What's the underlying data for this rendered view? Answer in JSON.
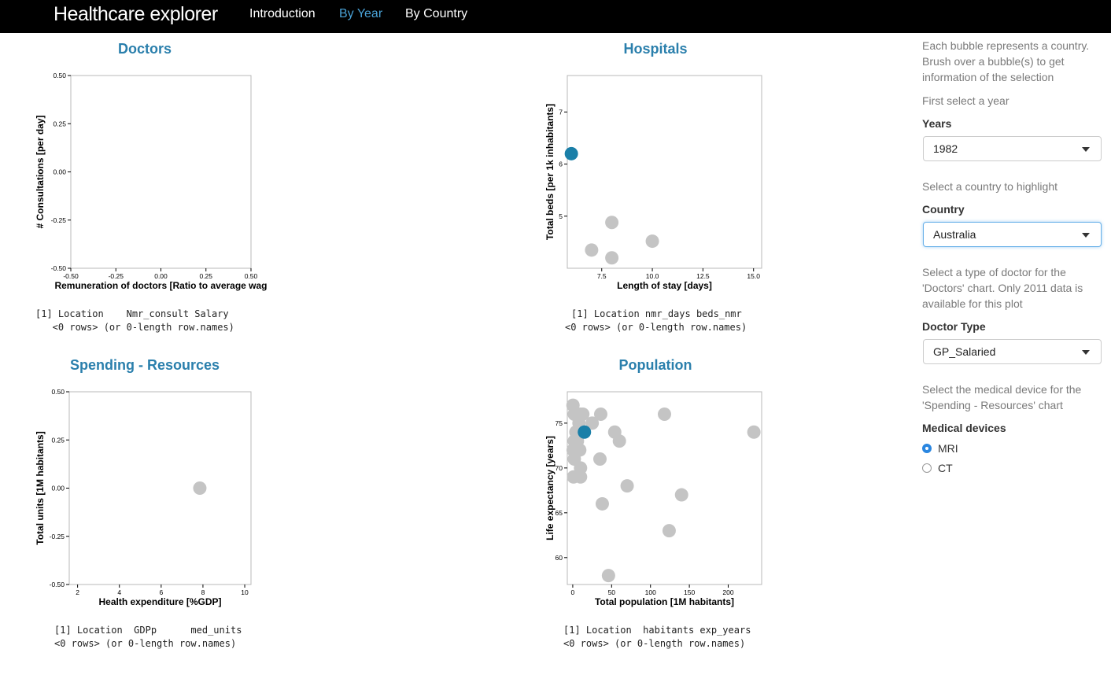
{
  "app": {
    "title": "Healthcare explorer",
    "nav": [
      {
        "label": "Introduction",
        "active": false
      },
      {
        "label": "By Year",
        "active": true
      },
      {
        "label": "By Country",
        "active": false
      }
    ]
  },
  "colors": {
    "highlight": "#1a7fa8",
    "bubble": "#c4c4c4",
    "title": "#2a7fac",
    "navbar": "#000000",
    "accent": "#4aa3d8"
  },
  "panels": {
    "doctors": {
      "title": "Doctors",
      "console": [
        "[1] Location    Nmr_consult Salary",
        "   <0 rows> (or 0-length row.names)"
      ]
    },
    "hospitals": {
      "title": "Hospitals",
      "console": [
        "[1] Location nmr_days beds_nmr",
        "<0 rows> (or 0-length row.names)"
      ]
    },
    "spending": {
      "title": "Spending - Resources",
      "console": [
        "[1] Location  GDPp      med_units",
        "<0 rows> (or 0-length row.names)"
      ]
    },
    "population": {
      "title": "Population",
      "console": [
        "[1] Location  habitants exp_years",
        "<0 rows> (or 0-length row.names)"
      ]
    }
  },
  "chart_data": [
    {
      "id": "doctors",
      "type": "scatter",
      "xlabel": "Remuneration of doctors [Ratio to average wag",
      "ylabel": "# Consultations [per day]",
      "xlim": [
        -0.5,
        0.5
      ],
      "ylim": [
        -0.5,
        0.5
      ],
      "xticks": [
        "-0.50",
        "-0.25",
        "0.00",
        "0.25",
        "0.50"
      ],
      "yticks": [
        "-0.50",
        "-0.25",
        "0.00",
        "0.25",
        "0.50"
      ],
      "points": []
    },
    {
      "id": "hospitals",
      "type": "scatter",
      "xlabel": "Length of stay [days]",
      "ylabel": "Total beds [per 1k inhabitants]",
      "xlim": [
        5.8,
        15.4
      ],
      "ylim": [
        4.0,
        7.7
      ],
      "xticks": [
        "7.5",
        "10.0",
        "12.5",
        "15.0"
      ],
      "yticks": [
        "5",
        "6",
        "7"
      ],
      "points": [
        {
          "x": 6.0,
          "y": 6.2,
          "highlight": true
        },
        {
          "x": 7.0,
          "y": 4.35,
          "highlight": false
        },
        {
          "x": 8.0,
          "y": 4.88,
          "highlight": false
        },
        {
          "x": 8.0,
          "y": 4.2,
          "highlight": false
        },
        {
          "x": 10.0,
          "y": 4.52,
          "highlight": false
        }
      ]
    },
    {
      "id": "spending",
      "type": "scatter",
      "xlabel": "Health expenditure [%GDP]",
      "ylabel": "Total units [1M habitants]",
      "xlim": [
        1.6,
        10.3
      ],
      "ylim": [
        -0.5,
        0.5
      ],
      "xticks": [
        "2",
        "4",
        "6",
        "8",
        "10"
      ],
      "yticks": [
        "-0.50",
        "-0.25",
        "0.00",
        "0.25",
        "0.50"
      ],
      "points": [
        {
          "x": 7.85,
          "y": 0.0,
          "highlight": false
        }
      ]
    },
    {
      "id": "population",
      "type": "scatter",
      "xlabel": "Total population [1M habitants]",
      "ylabel": "Life expectancy [years]",
      "xlim": [
        -7,
        243
      ],
      "ylim": [
        57,
        78.5
      ],
      "xticks": [
        "0",
        "50",
        "100",
        "150",
        "200"
      ],
      "yticks": [
        "60",
        "65",
        "70",
        "75"
      ],
      "points": [
        {
          "x": 0.3,
          "y": 77,
          "highlight": false
        },
        {
          "x": 2,
          "y": 76,
          "highlight": false
        },
        {
          "x": 10,
          "y": 76,
          "highlight": false
        },
        {
          "x": 13,
          "y": 76,
          "highlight": false
        },
        {
          "x": 36,
          "y": 76,
          "highlight": false
        },
        {
          "x": 118,
          "y": 76,
          "highlight": false
        },
        {
          "x": 8,
          "y": 75,
          "highlight": false
        },
        {
          "x": 25,
          "y": 75,
          "highlight": false
        },
        {
          "x": 4,
          "y": 74,
          "highlight": false
        },
        {
          "x": 54,
          "y": 74,
          "highlight": false
        },
        {
          "x": 233,
          "y": 74,
          "highlight": false
        },
        {
          "x": 2,
          "y": 73,
          "highlight": false
        },
        {
          "x": 6,
          "y": 73,
          "highlight": false
        },
        {
          "x": 60,
          "y": 73,
          "highlight": false
        },
        {
          "x": 0.5,
          "y": 72,
          "highlight": false
        },
        {
          "x": 9,
          "y": 72,
          "highlight": false
        },
        {
          "x": 2,
          "y": 71,
          "highlight": false
        },
        {
          "x": 35,
          "y": 71,
          "highlight": false
        },
        {
          "x": 10,
          "y": 70,
          "highlight": false
        },
        {
          "x": 1,
          "y": 69,
          "highlight": false
        },
        {
          "x": 10,
          "y": 69,
          "highlight": false
        },
        {
          "x": 70,
          "y": 68,
          "highlight": false
        },
        {
          "x": 140,
          "y": 67,
          "highlight": false
        },
        {
          "x": 38,
          "y": 66,
          "highlight": false
        },
        {
          "x": 124,
          "y": 63,
          "highlight": false
        },
        {
          "x": 46,
          "y": 58,
          "highlight": false
        },
        {
          "x": 15,
          "y": 74,
          "highlight": true
        }
      ]
    }
  ],
  "sidebar": {
    "intro": "Each bubble represents a country. Brush over a bubble(s) to get information of the selection",
    "year_help": "First select a year",
    "year_label": "Years",
    "year_value": "1982",
    "country_help": "Select a country to highlight",
    "country_label": "Country",
    "country_value": "Australia",
    "doctor_help": "Select a type of doctor for the 'Doctors' chart. Only 2011 data is available for this plot",
    "doctor_label": "Doctor Type",
    "doctor_value": "GP_Salaried",
    "device_help": "Select the medical device for the 'Spending - Resources' chart",
    "device_label": "Medical devices",
    "devices": [
      {
        "label": "MRI",
        "checked": true
      },
      {
        "label": "CT",
        "checked": false
      }
    ]
  }
}
